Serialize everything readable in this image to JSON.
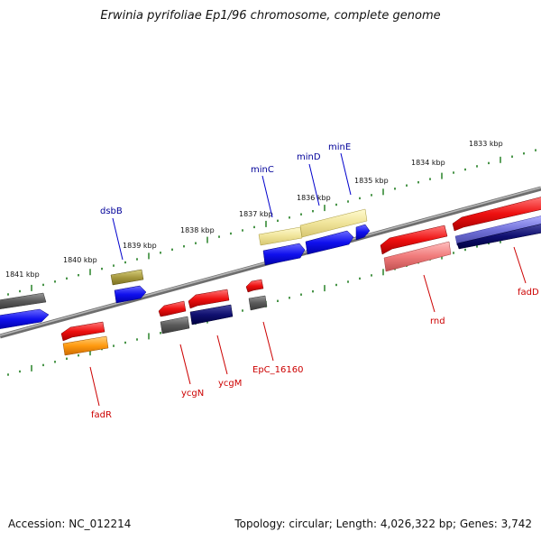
{
  "title": "Erwinia pyrifoliae Ep1/96 chromosome, complete genome",
  "footer": {
    "accession": "Accession: NC_012214",
    "summary": "Topology: circular; Length: 4,026,322 bp; Genes: 3,742"
  },
  "kbp_ticks": [
    "1841 kbp",
    "1840 kbp",
    "1839 kbp",
    "1838 kbp",
    "1837 kbp",
    "1836 kbp",
    "1835 kbp",
    "1834 kbp",
    "1833 kbp"
  ],
  "gene_labels": [
    "dsbB",
    "minC",
    "minD",
    "minE",
    "fadR",
    "ycgN",
    "ycgM",
    "EpC_16160",
    "rnd",
    "fadD"
  ],
  "colors": {
    "top_strand_label": "#000099",
    "bottom_strand_label": "#cc0000",
    "backbone": "#8a8a8a",
    "tick": "#1a7a1a"
  }
}
